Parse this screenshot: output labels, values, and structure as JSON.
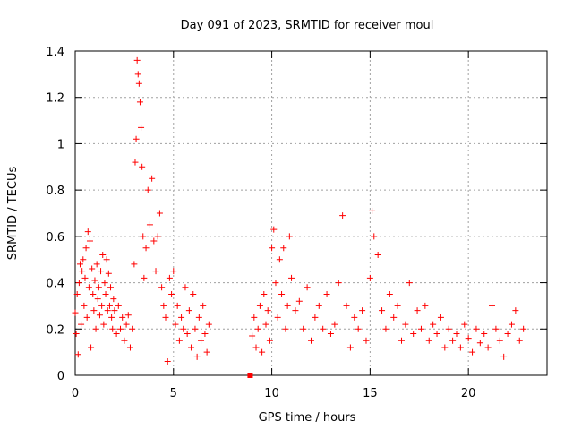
{
  "chart_data": {
    "type": "scatter",
    "title": "Day 091 of 2023, SRMTID for receiver moul",
    "xlabel": "GPS time / hours",
    "ylabel": "SRMTID / TECUs",
    "xlim": [
      0,
      24
    ],
    "ylim": [
      0,
      1.4
    ],
    "xticks": [
      0,
      5,
      10,
      15,
      20
    ],
    "xtick_labels": [
      "0",
      "5",
      "10",
      "15",
      "20"
    ],
    "yticks": [
      0,
      0.2,
      0.4,
      0.6,
      0.8,
      1.0,
      1.2,
      1.4
    ],
    "ytick_labels": [
      "0",
      "0.2",
      "0.4",
      "0.6",
      "0.8",
      "1",
      "1.2",
      "1.4"
    ],
    "grid": true,
    "marker": "plus",
    "color": "#ff0000",
    "data_gap": [
      7.0,
      8.9
    ],
    "series": [
      {
        "name": "SRMTID",
        "x": [
          0.0,
          0.05,
          0.1,
          0.15,
          0.2,
          0.25,
          0.3,
          0.35,
          0.4,
          0.45,
          0.5,
          0.55,
          0.6,
          0.65,
          0.7,
          0.75,
          0.8,
          0.85,
          0.9,
          0.95,
          1.0,
          1.05,
          1.1,
          1.15,
          1.2,
          1.25,
          1.3,
          1.35,
          1.4,
          1.45,
          1.5,
          1.55,
          1.6,
          1.65,
          1.7,
          1.75,
          1.8,
          1.85,
          1.9,
          1.95,
          2.0,
          2.1,
          2.2,
          2.3,
          2.4,
          2.5,
          2.6,
          2.7,
          2.8,
          2.9,
          3.0,
          3.05,
          3.1,
          3.15,
          3.2,
          3.25,
          3.3,
          3.35,
          3.4,
          3.45,
          3.5,
          3.6,
          3.7,
          3.8,
          3.9,
          4.0,
          4.1,
          4.2,
          4.3,
          4.4,
          4.5,
          4.6,
          4.7,
          4.8,
          4.9,
          5.0,
          5.1,
          5.2,
          5.3,
          5.4,
          5.5,
          5.6,
          5.7,
          5.8,
          5.9,
          6.0,
          6.1,
          6.2,
          6.3,
          6.4,
          6.5,
          6.6,
          6.7,
          6.8,
          9.0,
          9.1,
          9.2,
          9.3,
          9.4,
          9.5,
          9.6,
          9.7,
          9.8,
          9.9,
          10.0,
          10.1,
          10.2,
          10.3,
          10.4,
          10.5,
          10.6,
          10.7,
          10.8,
          10.9,
          11.0,
          11.2,
          11.4,
          11.6,
          11.8,
          12.0,
          12.2,
          12.4,
          12.6,
          12.8,
          13.0,
          13.2,
          13.4,
          13.6,
          13.8,
          14.0,
          14.2,
          14.4,
          14.6,
          14.8,
          15.0,
          15.1,
          15.2,
          15.4,
          15.6,
          15.8,
          16.0,
          16.2,
          16.4,
          16.6,
          16.8,
          17.0,
          17.2,
          17.4,
          17.6,
          17.8,
          18.0,
          18.2,
          18.4,
          18.6,
          18.8,
          19.0,
          19.2,
          19.4,
          19.6,
          19.8,
          20.0,
          20.2,
          20.4,
          20.6,
          20.8,
          21.0,
          21.2,
          21.4,
          21.6,
          21.8,
          22.0,
          22.2,
          22.4,
          22.6,
          22.8
        ],
        "y": [
          0.27,
          0.18,
          0.35,
          0.09,
          0.4,
          0.48,
          0.22,
          0.45,
          0.5,
          0.3,
          0.42,
          0.55,
          0.25,
          0.62,
          0.38,
          0.58,
          0.12,
          0.46,
          0.35,
          0.28,
          0.41,
          0.2,
          0.48,
          0.33,
          0.38,
          0.26,
          0.45,
          0.3,
          0.52,
          0.22,
          0.4,
          0.35,
          0.5,
          0.28,
          0.44,
          0.3,
          0.38,
          0.25,
          0.2,
          0.33,
          0.28,
          0.18,
          0.3,
          0.2,
          0.25,
          0.15,
          0.22,
          0.26,
          0.12,
          0.2,
          0.48,
          0.92,
          1.02,
          1.36,
          1.3,
          1.26,
          1.18,
          1.07,
          0.9,
          0.6,
          0.42,
          0.55,
          0.8,
          0.65,
          0.85,
          0.58,
          0.45,
          0.6,
          0.7,
          0.38,
          0.3,
          0.25,
          0.06,
          0.42,
          0.35,
          0.45,
          0.22,
          0.3,
          0.15,
          0.25,
          0.2,
          0.38,
          0.18,
          0.28,
          0.12,
          0.35,
          0.2,
          0.08,
          0.25,
          0.15,
          0.3,
          0.18,
          0.1,
          0.22,
          0.17,
          0.25,
          0.12,
          0.2,
          0.3,
          0.1,
          0.35,
          0.22,
          0.28,
          0.15,
          0.55,
          0.63,
          0.4,
          0.25,
          0.5,
          0.35,
          0.55,
          0.2,
          0.3,
          0.6,
          0.42,
          0.28,
          0.32,
          0.2,
          0.38,
          0.15,
          0.25,
          0.3,
          0.2,
          0.35,
          0.18,
          0.22,
          0.4,
          0.69,
          0.3,
          0.12,
          0.25,
          0.2,
          0.28,
          0.15,
          0.42,
          0.71,
          0.6,
          0.52,
          0.28,
          0.2,
          0.35,
          0.25,
          0.3,
          0.15,
          0.22,
          0.4,
          0.18,
          0.28,
          0.2,
          0.3,
          0.15,
          0.22,
          0.18,
          0.25,
          0.12,
          0.2,
          0.15,
          0.18,
          0.12,
          0.22,
          0.16,
          0.1,
          0.2,
          0.14,
          0.18,
          0.12,
          0.3,
          0.2,
          0.15,
          0.08,
          0.18,
          0.22,
          0.28,
          0.15,
          0.2
        ]
      }
    ],
    "min_marker": {
      "x": 8.9,
      "y": 0.0
    }
  }
}
